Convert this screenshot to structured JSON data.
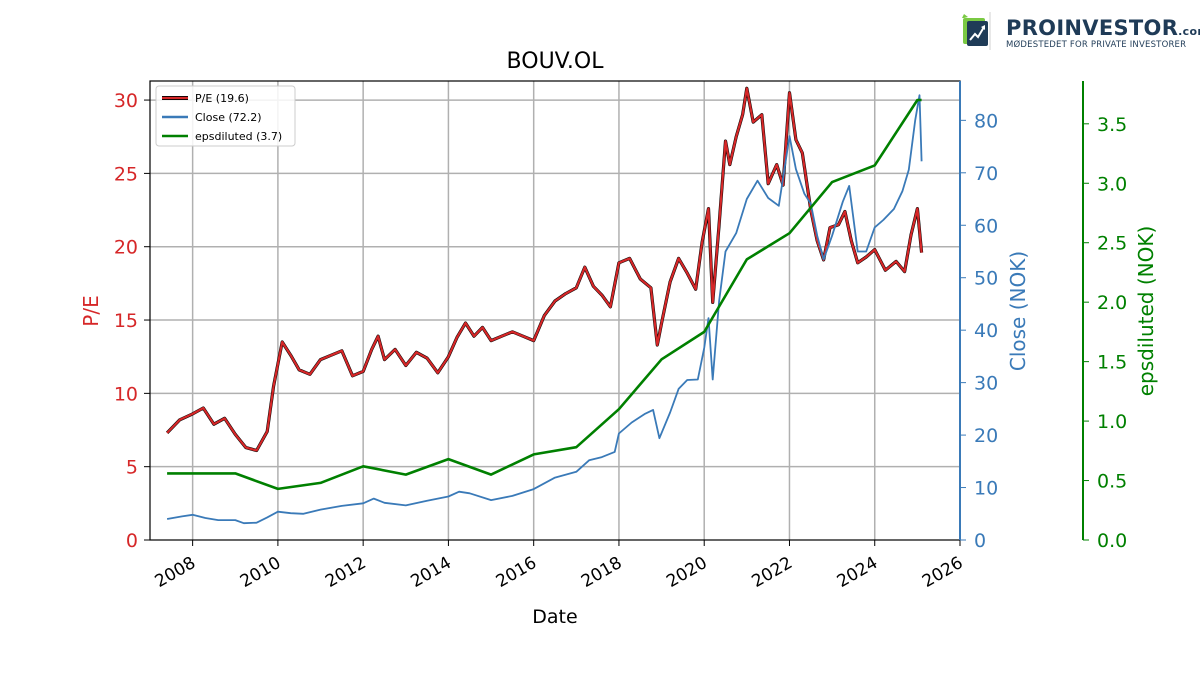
{
  "brand": {
    "name": "PROINVESTOR",
    "suffix": ".com",
    "tagline": "MØDESTEDET FOR PRIVATE INVESTORER"
  },
  "chart_data": {
    "type": "line",
    "title": "BOUV.OL",
    "xlabel": "Date",
    "xlim": [
      2007.0,
      2026.0
    ],
    "x_ticks": [
      2008,
      2010,
      2012,
      2014,
      2016,
      2018,
      2020,
      2022,
      2024,
      2026
    ],
    "x_tick_labels": [
      "2008",
      "2010",
      "2012",
      "2014",
      "2016",
      "2018",
      "2020",
      "2022",
      "2024",
      "2026"
    ],
    "grid": true,
    "legend_position": "top-left",
    "axes": {
      "left": {
        "label": "P/E",
        "color": "#d62728",
        "ylim": [
          0,
          31.3
        ],
        "ticks": [
          0,
          5,
          10,
          15,
          20,
          25,
          30
        ],
        "tick_labels": [
          "0",
          "5",
          "10",
          "15",
          "20",
          "25",
          "30"
        ]
      },
      "right1": {
        "label": "Close (NOK)",
        "color": "#3a7ab8",
        "ylim": [
          0,
          87.5
        ],
        "ticks": [
          0,
          10,
          20,
          30,
          40,
          50,
          60,
          70,
          80
        ],
        "tick_labels": [
          "0",
          "10",
          "20",
          "30",
          "40",
          "50",
          "60",
          "70",
          "80"
        ]
      },
      "right2": {
        "label": "epsdiluted (NOK)",
        "color": "#008000",
        "ylim": [
          0,
          3.86
        ],
        "ticks": [
          0.0,
          0.5,
          1.0,
          1.5,
          2.0,
          2.5,
          3.0,
          3.5
        ],
        "tick_labels": [
          "0.0",
          "0.5",
          "1.0",
          "1.5",
          "2.0",
          "2.5",
          "3.0",
          "3.5"
        ]
      }
    },
    "series": [
      {
        "name": "P/E (19.6)",
        "axis": "left",
        "color": "#d62728",
        "points": [
          [
            2007.4,
            7.3
          ],
          [
            2007.7,
            8.2
          ],
          [
            2008.0,
            8.6
          ],
          [
            2008.25,
            9.0
          ],
          [
            2008.5,
            7.9
          ],
          [
            2008.75,
            8.3
          ],
          [
            2009.0,
            7.2
          ],
          [
            2009.25,
            6.3
          ],
          [
            2009.5,
            6.1
          ],
          [
            2009.75,
            7.4
          ],
          [
            2009.9,
            10.5
          ],
          [
            2010.0,
            12.0
          ],
          [
            2010.1,
            13.5
          ],
          [
            2010.3,
            12.6
          ],
          [
            2010.5,
            11.6
          ],
          [
            2010.75,
            11.3
          ],
          [
            2011.0,
            12.3
          ],
          [
            2011.25,
            12.6
          ],
          [
            2011.5,
            12.9
          ],
          [
            2011.75,
            11.2
          ],
          [
            2012.0,
            11.5
          ],
          [
            2012.2,
            13.0
          ],
          [
            2012.35,
            13.9
          ],
          [
            2012.5,
            12.3
          ],
          [
            2012.75,
            13.0
          ],
          [
            2013.0,
            11.9
          ],
          [
            2013.25,
            12.8
          ],
          [
            2013.5,
            12.4
          ],
          [
            2013.75,
            11.4
          ],
          [
            2014.0,
            12.5
          ],
          [
            2014.2,
            13.8
          ],
          [
            2014.4,
            14.8
          ],
          [
            2014.6,
            13.9
          ],
          [
            2014.8,
            14.5
          ],
          [
            2015.0,
            13.6
          ],
          [
            2015.25,
            13.9
          ],
          [
            2015.5,
            14.2
          ],
          [
            2015.75,
            13.9
          ],
          [
            2016.0,
            13.6
          ],
          [
            2016.25,
            15.3
          ],
          [
            2016.5,
            16.3
          ],
          [
            2016.75,
            16.8
          ],
          [
            2017.0,
            17.2
          ],
          [
            2017.2,
            18.6
          ],
          [
            2017.4,
            17.3
          ],
          [
            2017.6,
            16.7
          ],
          [
            2017.8,
            15.9
          ],
          [
            2018.0,
            18.9
          ],
          [
            2018.25,
            19.2
          ],
          [
            2018.5,
            17.8
          ],
          [
            2018.75,
            17.2
          ],
          [
            2018.9,
            13.3
          ],
          [
            2019.0,
            14.8
          ],
          [
            2019.2,
            17.6
          ],
          [
            2019.4,
            19.2
          ],
          [
            2019.6,
            18.2
          ],
          [
            2019.8,
            17.1
          ],
          [
            2019.95,
            20.3
          ],
          [
            2020.1,
            22.6
          ],
          [
            2020.2,
            16.2
          ],
          [
            2020.35,
            21.5
          ],
          [
            2020.5,
            27.2
          ],
          [
            2020.6,
            25.6
          ],
          [
            2020.75,
            27.5
          ],
          [
            2020.9,
            29.0
          ],
          [
            2021.0,
            30.8
          ],
          [
            2021.15,
            28.5
          ],
          [
            2021.35,
            29.0
          ],
          [
            2021.5,
            24.3
          ],
          [
            2021.7,
            25.6
          ],
          [
            2021.85,
            24.2
          ],
          [
            2022.0,
            30.5
          ],
          [
            2022.15,
            27.3
          ],
          [
            2022.3,
            26.4
          ],
          [
            2022.5,
            22.5
          ],
          [
            2022.65,
            20.4
          ],
          [
            2022.8,
            19.1
          ],
          [
            2022.95,
            21.3
          ],
          [
            2023.15,
            21.5
          ],
          [
            2023.3,
            22.4
          ],
          [
            2023.45,
            20.4
          ],
          [
            2023.6,
            18.9
          ],
          [
            2023.8,
            19.3
          ],
          [
            2024.0,
            19.8
          ],
          [
            2024.25,
            18.4
          ],
          [
            2024.5,
            19.0
          ],
          [
            2024.7,
            18.3
          ],
          [
            2024.85,
            20.8
          ],
          [
            2025.0,
            22.6
          ],
          [
            2025.1,
            19.6
          ]
        ]
      },
      {
        "name": "Close (72.2)",
        "axis": "right1",
        "color": "#3a7ab8",
        "points": [
          [
            2007.4,
            4.0
          ],
          [
            2007.75,
            4.5
          ],
          [
            2008.0,
            4.8
          ],
          [
            2008.3,
            4.2
          ],
          [
            2008.6,
            3.8
          ],
          [
            2009.0,
            3.8
          ],
          [
            2009.2,
            3.2
          ],
          [
            2009.5,
            3.3
          ],
          [
            2009.75,
            4.3
          ],
          [
            2010.0,
            5.4
          ],
          [
            2010.3,
            5.1
          ],
          [
            2010.6,
            5.0
          ],
          [
            2011.0,
            5.8
          ],
          [
            2011.5,
            6.5
          ],
          [
            2012.0,
            7.0
          ],
          [
            2012.25,
            7.9
          ],
          [
            2012.5,
            7.1
          ],
          [
            2013.0,
            6.6
          ],
          [
            2013.5,
            7.5
          ],
          [
            2014.0,
            8.3
          ],
          [
            2014.25,
            9.2
          ],
          [
            2014.5,
            8.9
          ],
          [
            2015.0,
            7.6
          ],
          [
            2015.5,
            8.4
          ],
          [
            2016.0,
            9.7
          ],
          [
            2016.5,
            11.9
          ],
          [
            2017.0,
            13.0
          ],
          [
            2017.3,
            15.2
          ],
          [
            2017.6,
            15.8
          ],
          [
            2017.9,
            16.8
          ],
          [
            2018.0,
            20.3
          ],
          [
            2018.3,
            22.4
          ],
          [
            2018.6,
            24.0
          ],
          [
            2018.8,
            24.8
          ],
          [
            2018.95,
            19.4
          ],
          [
            2019.2,
            24.3
          ],
          [
            2019.4,
            28.8
          ],
          [
            2019.6,
            30.5
          ],
          [
            2019.85,
            30.6
          ],
          [
            2020.0,
            36.6
          ],
          [
            2020.1,
            42.3
          ],
          [
            2020.2,
            30.6
          ],
          [
            2020.35,
            45.5
          ],
          [
            2020.5,
            55.0
          ],
          [
            2020.75,
            58.5
          ],
          [
            2021.0,
            65.0
          ],
          [
            2021.25,
            68.5
          ],
          [
            2021.5,
            65.2
          ],
          [
            2021.75,
            63.7
          ],
          [
            2022.0,
            77.0
          ],
          [
            2022.15,
            70.7
          ],
          [
            2022.35,
            66.0
          ],
          [
            2022.5,
            64.1
          ],
          [
            2022.65,
            58.0
          ],
          [
            2022.8,
            53.5
          ],
          [
            2023.0,
            58.0
          ],
          [
            2023.25,
            64.5
          ],
          [
            2023.4,
            67.5
          ],
          [
            2023.6,
            55.0
          ],
          [
            2023.8,
            55.0
          ],
          [
            2024.0,
            59.6
          ],
          [
            2024.2,
            61.0
          ],
          [
            2024.45,
            63.1
          ],
          [
            2024.65,
            66.5
          ],
          [
            2024.8,
            70.6
          ],
          [
            2024.95,
            80.0
          ],
          [
            2025.05,
            84.8
          ],
          [
            2025.1,
            72.2
          ]
        ]
      },
      {
        "name": "epsdiluted (3.7)",
        "axis": "right2",
        "color": "#008000",
        "points": [
          [
            2007.4,
            0.56
          ],
          [
            2008.0,
            0.56
          ],
          [
            2009.0,
            0.56
          ],
          [
            2010.0,
            0.43
          ],
          [
            2011.0,
            0.48
          ],
          [
            2012.0,
            0.62
          ],
          [
            2013.0,
            0.55
          ],
          [
            2014.0,
            0.68
          ],
          [
            2015.0,
            0.55
          ],
          [
            2016.0,
            0.72
          ],
          [
            2017.0,
            0.78
          ],
          [
            2018.0,
            1.1
          ],
          [
            2019.0,
            1.52
          ],
          [
            2020.0,
            1.75
          ],
          [
            2021.0,
            2.36
          ],
          [
            2022.0,
            2.58
          ],
          [
            2023.0,
            3.01
          ],
          [
            2024.0,
            3.15
          ],
          [
            2025.0,
            3.7
          ],
          [
            2025.1,
            3.7
          ]
        ]
      }
    ]
  }
}
